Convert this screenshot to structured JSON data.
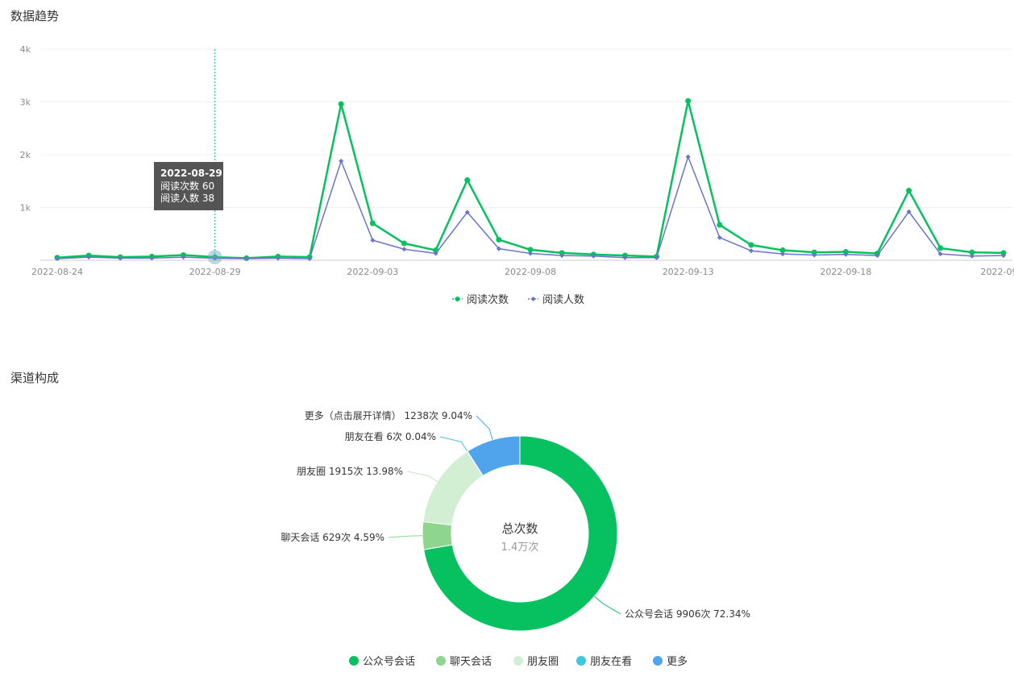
{
  "sections": {
    "trend_title": "数据趋势",
    "channel_title": "渠道构成"
  },
  "colors": {
    "reads": "#07c160",
    "readers": "#6b74c8",
    "grid": "#f0f0f0",
    "axis": "#cccccc",
    "tooltip_bg": "#4c4c4c",
    "cursor": "#07c160"
  },
  "tooltip": {
    "date": "2022-08-29",
    "line1": "阅读次数 60",
    "line2": "阅读人数 38"
  },
  "chart_data": [
    {
      "type": "line",
      "title": "",
      "xlabel": "",
      "ylabel": "",
      "ylim": [
        0,
        4000
      ],
      "yticks": [
        "",
        "1k",
        "2k",
        "3k",
        "4k"
      ],
      "xtick_labels": [
        "2022-08-24",
        "2022-08-29",
        "2022-09-03",
        "2022-09-08",
        "2022-09-13",
        "2022-09-18",
        "2022-09-2"
      ],
      "xtick_indices": [
        0,
        5,
        10,
        15,
        20,
        25,
        30
      ],
      "x": [
        "2022-08-24",
        "2022-08-25",
        "2022-08-26",
        "2022-08-27",
        "2022-08-28",
        "2022-08-29",
        "2022-08-30",
        "2022-08-31",
        "2022-09-01",
        "2022-09-02",
        "2022-09-03",
        "2022-09-04",
        "2022-09-05",
        "2022-09-06",
        "2022-09-07",
        "2022-09-08",
        "2022-09-09",
        "2022-09-10",
        "2022-09-11",
        "2022-09-12",
        "2022-09-13",
        "2022-09-14",
        "2022-09-15",
        "2022-09-16",
        "2022-09-17",
        "2022-09-18",
        "2022-09-19",
        "2022-09-20",
        "2022-09-21",
        "2022-09-22",
        "2022-09-23"
      ],
      "series": [
        {
          "name": "阅读次数",
          "values": [
            50,
            90,
            60,
            70,
            100,
            60,
            40,
            70,
            60,
            2960,
            700,
            320,
            190,
            1520,
            390,
            200,
            140,
            110,
            90,
            70,
            3020,
            670,
            290,
            190,
            150,
            160,
            130,
            1320,
            230,
            150,
            140
          ]
        },
        {
          "name": "阅读人数",
          "values": [
            30,
            60,
            40,
            40,
            60,
            38,
            30,
            40,
            30,
            1880,
            380,
            210,
            130,
            910,
            220,
            130,
            90,
            80,
            50,
            50,
            1960,
            430,
            180,
            120,
            100,
            110,
            90,
            920,
            120,
            80,
            90
          ]
        }
      ],
      "legend": "bottom-center",
      "grid": true
    },
    {
      "type": "pie",
      "title": "",
      "center_title": "总次数",
      "center_sub": "1.4万次",
      "slices": [
        {
          "name": "公众号会话",
          "value": 9906,
          "percent": "72.34%",
          "label": "公众号会话 9906次 72.34%",
          "color": "#07c160"
        },
        {
          "name": "聊天会话",
          "value": 629,
          "percent": "4.59%",
          "label": "聊天会话 629次 4.59%",
          "color": "#8ed68f"
        },
        {
          "name": "朋友圈",
          "value": 1915,
          "percent": "13.98%",
          "label": "朋友圈 1915次 13.98%",
          "color": "#d2efd4"
        },
        {
          "name": "朋友在看",
          "value": 6,
          "percent": "0.04%",
          "label": "朋友在看 6次 0.04%",
          "color": "#3ec7e3"
        },
        {
          "name": "更多",
          "value": 1238,
          "percent": "9.04%",
          "label": "更多（点击展开详情） 1238次 9.04%",
          "color": "#4fa4ec"
        }
      ],
      "legend": "bottom-center"
    }
  ]
}
